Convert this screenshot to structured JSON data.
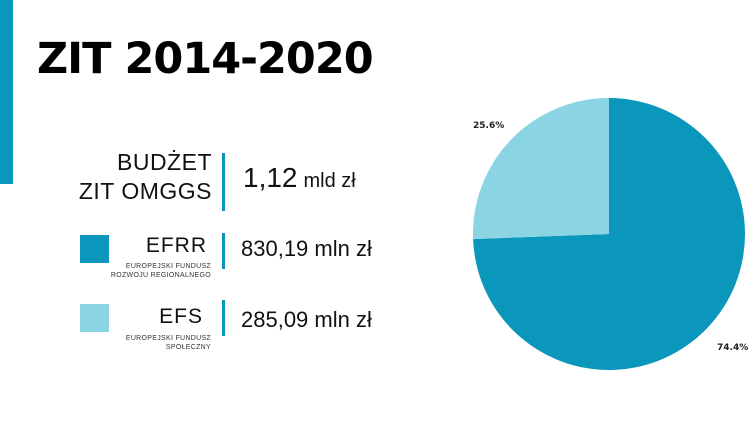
{
  "title": "ZIT 2014-2020",
  "budget": {
    "label_line1": "BUDŻET",
    "label_line2": "ZIT OMGGS",
    "value": "1,12",
    "unit": "mld zł"
  },
  "funds": [
    {
      "name": "EFRR",
      "subtitle_line1": "EUROPEJSKI FUNDUSZ",
      "subtitle_line2": "ROZWOJU REGIONALNEGO",
      "amount": "830,19 mln zł",
      "color": "#0b97bb"
    },
    {
      "name": "EFS",
      "subtitle_line1": "EUROPEJSKI FUNDUSZ",
      "subtitle_line2": "SPOŁECZNY",
      "amount": "285,09 mln zł",
      "color": "#8ad4e3"
    }
  ],
  "chart_data": {
    "type": "pie",
    "slices": [
      {
        "value": 74.4,
        "label": "74.4%",
        "color": "#0b97bb"
      },
      {
        "value": 25.6,
        "label": "25.6%",
        "color": "#8ad4e3"
      }
    ],
    "legend": "none"
  }
}
